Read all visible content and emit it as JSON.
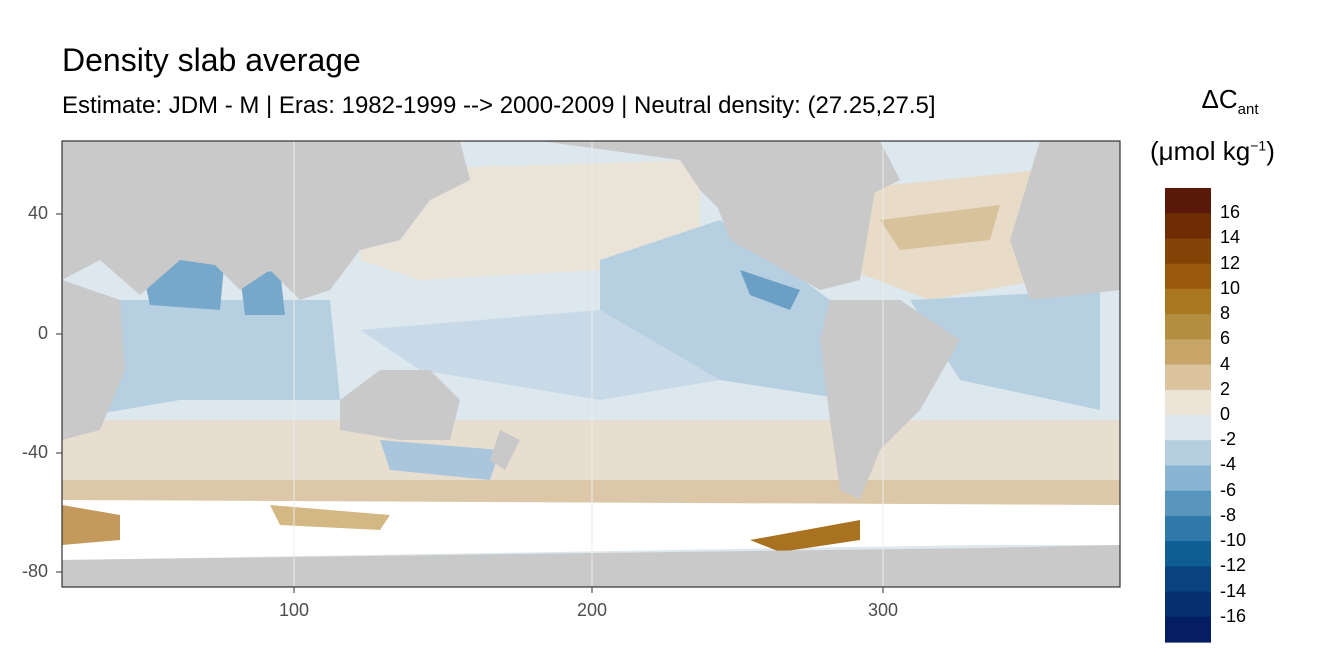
{
  "title": "Density slab average",
  "subtitle": "Estimate: JDM - M | Eras: 1982-1999 --> 2000-2009 | Neutral density: (27.25,27.5]",
  "map": {
    "x_ticks": [
      "100",
      "200",
      "300"
    ],
    "y_ticks": [
      "40",
      "0",
      "-40",
      "-80"
    ],
    "land_color": "#c9c9c9",
    "background_color": "#ffffff"
  },
  "legend": {
    "title_main": "ΔC",
    "title_sub": "ant",
    "unit_main": "(μmol kg",
    "unit_sup": "−1",
    "unit_close": ")",
    "labels": [
      "16",
      "14",
      "12",
      "10",
      "8",
      "6",
      "4",
      "2",
      "0",
      "-2",
      "-4",
      "-6",
      "-8",
      "-10",
      "-12",
      "-14",
      "-16"
    ],
    "colors": [
      "#5a1808",
      "#6f2d06",
      "#844306",
      "#9a5a0d",
      "#a9771f",
      "#b48e3f",
      "#c7a569",
      "#dbc39d",
      "#ebe4d6",
      "#dbe6ee",
      "#b5cfe0",
      "#8ab5d2",
      "#5996be",
      "#2f78aa",
      "#0f5d95",
      "#08437f",
      "#062f6f",
      "#051e63"
    ]
  }
}
